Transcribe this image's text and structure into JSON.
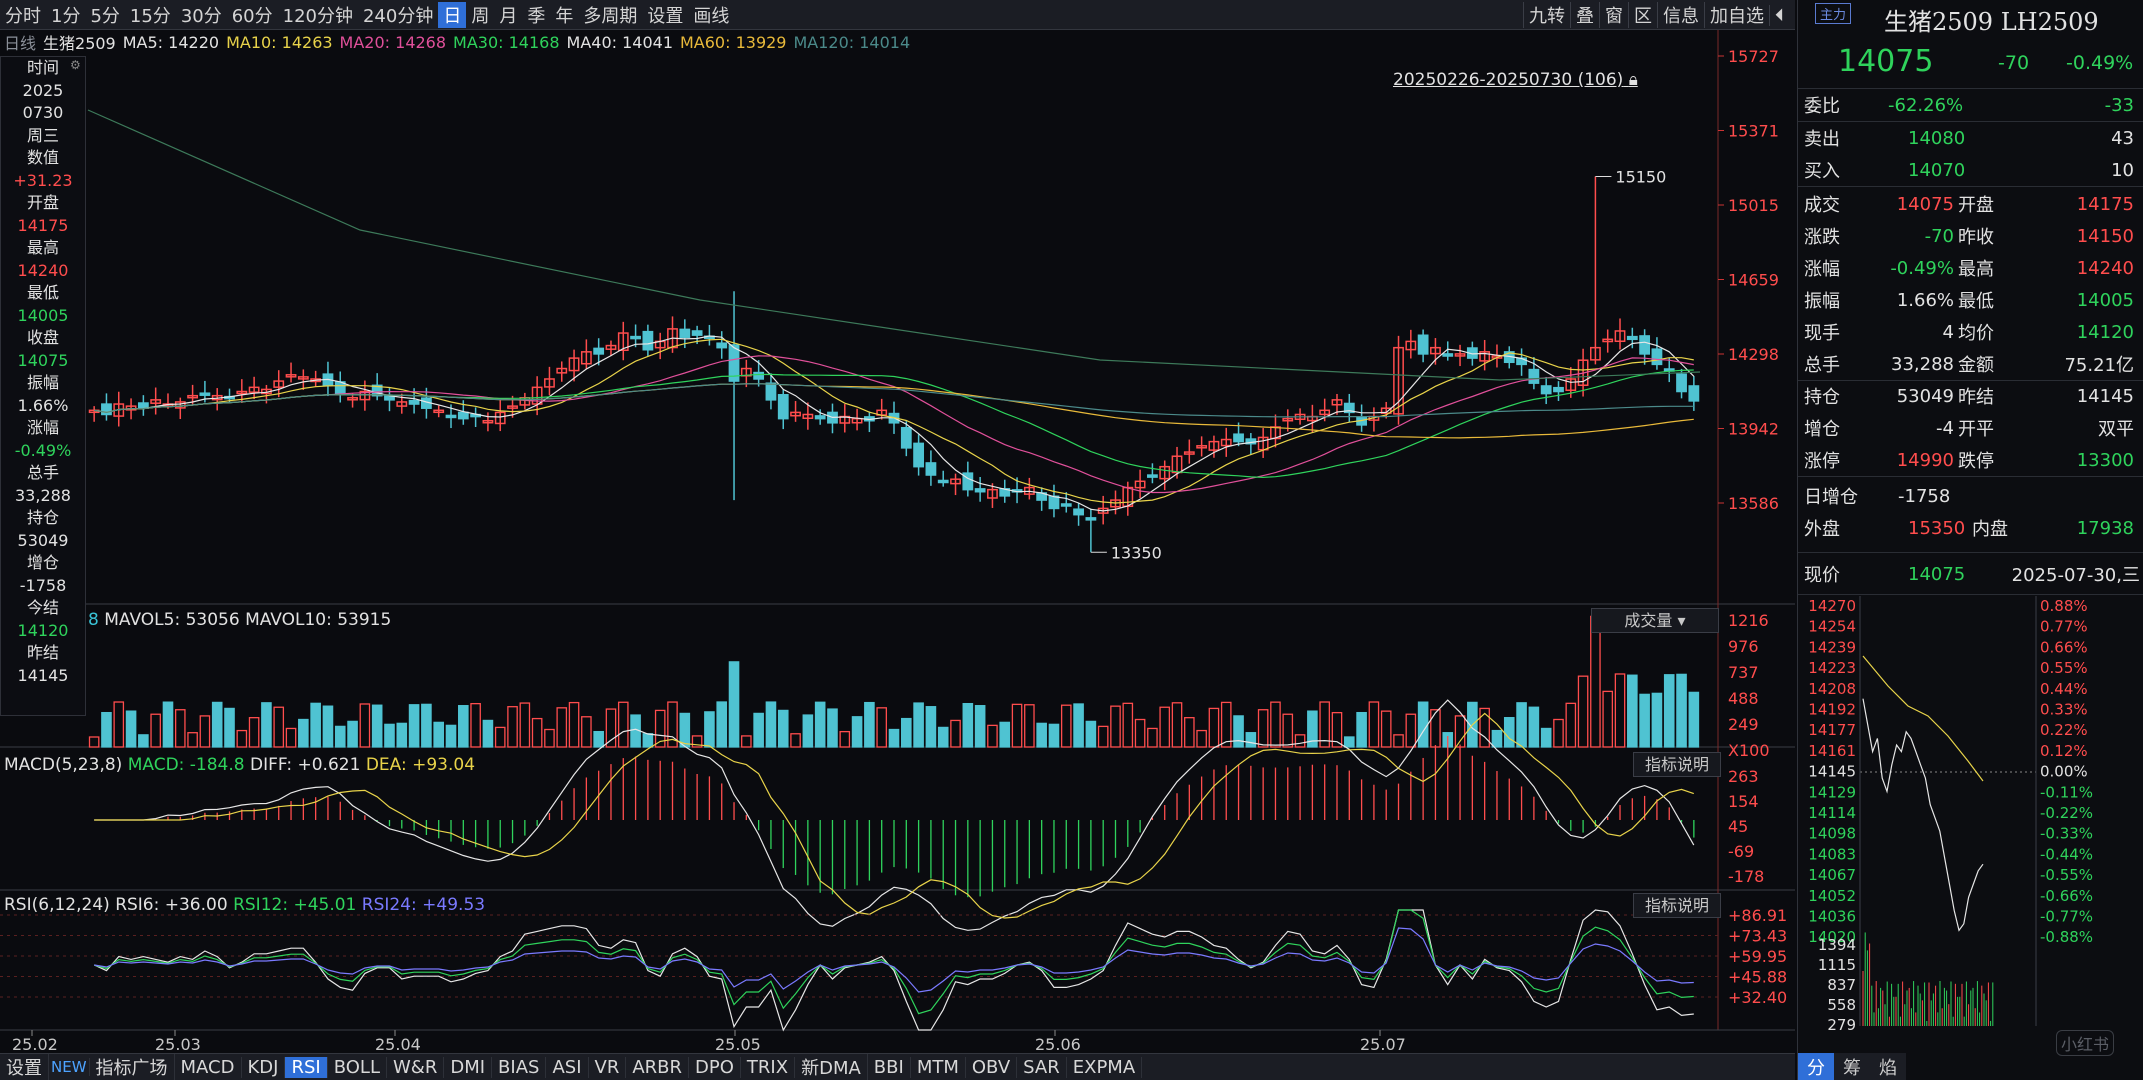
{
  "toolbar": {
    "items": [
      "分时",
      "1分",
      "5分",
      "15分",
      "30分",
      "60分",
      "120分钟",
      "240分钟",
      "日",
      "周",
      "月",
      "季",
      "年",
      "多周期",
      "设置",
      "画线"
    ],
    "active": "日",
    "right": [
      "九转",
      "叠",
      "窗",
      "区",
      "信息",
      "加自选",
      "⏴"
    ]
  },
  "ma_bar": {
    "period": "日线",
    "name": "生猪2509",
    "ma5": "MA5: 14220",
    "ma10": "MA10: 14263",
    "ma20": "MA20: 14268",
    "ma30": "MA30: 14168",
    "ma40": "MA40: 14041",
    "ma60": "MA60: 13929",
    "ma120": "MA120: 14014"
  },
  "info_panel": [
    {
      "t": "时间",
      "c": "wht"
    },
    {
      "t": "2025",
      "c": "wht"
    },
    {
      "t": "0730",
      "c": "wht"
    },
    {
      "t": "周三",
      "c": "wht"
    },
    {
      "t": "数值",
      "c": "wht"
    },
    {
      "t": "+31.23",
      "c": "red"
    },
    {
      "t": "开盘",
      "c": "wht"
    },
    {
      "t": "14175",
      "c": "red"
    },
    {
      "t": "最高",
      "c": "wht"
    },
    {
      "t": "14240",
      "c": "red"
    },
    {
      "t": "最低",
      "c": "wht"
    },
    {
      "t": "14005",
      "c": "green"
    },
    {
      "t": "收盘",
      "c": "wht"
    },
    {
      "t": "14075",
      "c": "green"
    },
    {
      "t": "振幅",
      "c": "wht"
    },
    {
      "t": "1.66%",
      "c": "wht"
    },
    {
      "t": "涨幅",
      "c": "wht"
    },
    {
      "t": "-0.49%",
      "c": "green"
    },
    {
      "t": "总手",
      "c": "wht"
    },
    {
      "t": "33,288",
      "c": "wht"
    },
    {
      "t": "持仓",
      "c": "wht"
    },
    {
      "t": "53049",
      "c": "wht"
    },
    {
      "t": "增仓",
      "c": "wht"
    },
    {
      "t": "-1758",
      "c": "wht"
    },
    {
      "t": "今结",
      "c": "wht"
    },
    {
      "t": "14120",
      "c": "green"
    },
    {
      "t": "昨结",
      "c": "wht"
    },
    {
      "t": "14145",
      "c": "wht"
    }
  ],
  "range_label": "20250226-20250730 (106)",
  "price_axis": [
    "15727",
    "15371",
    "15015",
    "14659",
    "14298",
    "13942",
    "13586"
  ],
  "high_label": "15150",
  "low_label": "13350",
  "vol_bar": {
    "prefix": "8",
    "mavol5": "MAVOL5: 53056",
    "mavol10": "MAVOL10: 53915",
    "dropdown": "成交量"
  },
  "vol_axis": [
    "1216",
    "976",
    "737",
    "488",
    "249",
    "X100"
  ],
  "macd_bar": {
    "params": "MACD(5,23,8)",
    "macd": "MACD: -184.8",
    "diff": "DIFF: +0.621",
    "dea": "DEA: +93.04",
    "help": "指标说明"
  },
  "macd_axis": [
    "263",
    "154",
    "45",
    "-69",
    "-178"
  ],
  "rsi_bar": {
    "params": "RSI(6,12,24)",
    "rsi6": "RSI6: +36.00",
    "rsi12": "RSI12: +45.01",
    "rsi24": "RSI24: +49.53",
    "help": "指标说明"
  },
  "rsi_axis": [
    "+86.91",
    "+73.43",
    "+59.95",
    "+45.88",
    "+32.40"
  ],
  "date_axis": [
    "25.02",
    "25.03",
    "25.04",
    "25.05",
    "25.06",
    "25.07"
  ],
  "bottom_tabs": [
    "设置",
    "NEW",
    "指标广场",
    "MACD",
    "KDJ",
    "RSI",
    "BOLL",
    "W&R",
    "DMI",
    "BIAS",
    "ASI",
    "VR",
    "ARBR",
    "DPO",
    "TRIX",
    "新DMA",
    "BBI",
    "MTM",
    "OBV",
    "SAR",
    "EXPMA"
  ],
  "bottom_active": "RSI",
  "quote": {
    "badge": "主力",
    "title": "生猪2509 LH2509",
    "price": "14075",
    "change": "-70",
    "pct": "-0.49%",
    "weibi_l": "委比",
    "weibi": "-62.26%",
    "weicha": "-33",
    "sell_l": "卖出",
    "sell_p": "14080",
    "sell_v": "43",
    "buy_l": "买入",
    "buy_p": "14070",
    "buy_v": "10",
    "rows": [
      [
        "成交",
        "14075",
        "开盘",
        "14175"
      ],
      [
        "涨跌",
        "-70",
        "昨收",
        "14150"
      ],
      [
        "涨幅",
        "-0.49%",
        "最高",
        "14240"
      ],
      [
        "振幅",
        "1.66%",
        "最低",
        "14005"
      ],
      [
        "现手",
        "4",
        "均价",
        "14120"
      ],
      [
        "总手",
        "33,288",
        "金额",
        "75.21亿"
      ],
      [
        "持仓",
        "53049",
        "昨结",
        "14145"
      ],
      [
        "增仓",
        "-4",
        "开平",
        "双平"
      ],
      [
        "涨停",
        "14990",
        "跌停",
        "13300"
      ]
    ],
    "day_add_l": "日增仓",
    "day_add": "-1758",
    "outer_l": "外盘",
    "outer": "15350",
    "inner_l": "内盘",
    "inner": "17938",
    "now_l": "现价",
    "now": "14075",
    "date": "2025-07-30,三"
  },
  "mini_axis_left": [
    "14270",
    "14254",
    "14239",
    "14223",
    "14208",
    "14192",
    "14177",
    "14161",
    "14145",
    "14129",
    "14114",
    "14098",
    "14083",
    "14067",
    "14052",
    "14036",
    "14020"
  ],
  "mini_axis_right": [
    "0.88%",
    "0.77%",
    "0.66%",
    "0.55%",
    "0.44%",
    "0.33%",
    "0.22%",
    "0.12%",
    "0.00%",
    "-0.11%",
    "-0.22%",
    "-0.33%",
    "-0.44%",
    "-0.55%",
    "-0.66%",
    "-0.77%",
    "-0.88%"
  ],
  "mini_vol_axis": [
    "1394",
    "1115",
    "837",
    "558",
    "279"
  ],
  "mini_tabs": [
    "分",
    "筹",
    "焰"
  ],
  "watermark": "小红书"
}
